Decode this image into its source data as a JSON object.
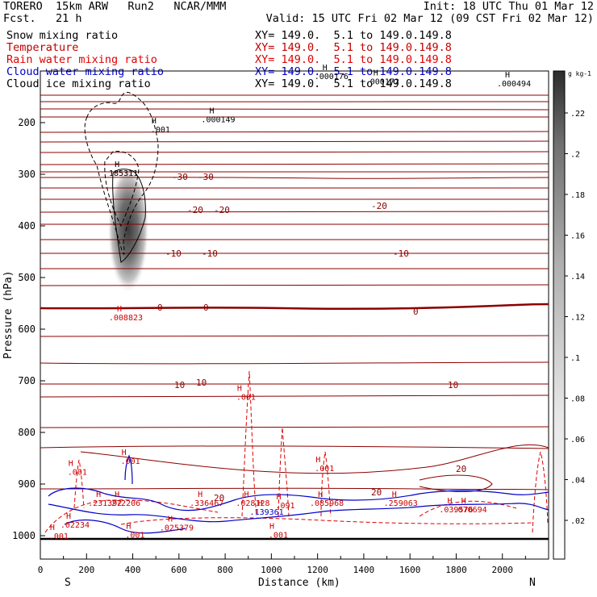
{
  "header": {
    "model": "TORERO  15km ARW   Run2   NCAR/MMM",
    "init": "Init: 18 UTC Thu 01 Mar 12",
    "fcst": "Fcst.   21 h",
    "valid": "Valid: 15 UTC Fri 02 Mar 12 (09 CST Fri 02 Mar 12)"
  },
  "legend": [
    {
      "label": "Snow mixing ratio",
      "color": "#000000",
      "xy": "XY= 149.0.  5.1 to 149.0.149.8"
    },
    {
      "label": "Temperature",
      "color": "#c00000",
      "xy": "XY= 149.0.  5.1 to 149.0.149.8"
    },
    {
      "label": "Rain water mixing ratio",
      "color": "#e00000",
      "xy": "XY= 149.0.  5.1 to 149.0.149.8"
    },
    {
      "label": "Cloud water mixing ratio",
      "color": "#0000cc",
      "xy": "XY= 149.0.  5.1 to 149.0.149.8"
    },
    {
      "label": "Cloud ice mixing ratio",
      "color": "#000000",
      "xy": "XY= 149.0.  5.1 to 149.0.149.8"
    }
  ],
  "chart_data": {
    "type": "cross-section contour",
    "ylabel": "Pressure (hPa)",
    "xlabel": "Distance (km)",
    "xlim": [
      0,
      2200
    ],
    "ylim": [
      1050,
      100
    ],
    "x_ticks": [
      0,
      200,
      400,
      600,
      800,
      1000,
      1200,
      1400,
      1600,
      1800,
      2000
    ],
    "y_ticks": [
      200,
      300,
      400,
      500,
      600,
      700,
      800,
      900,
      1000
    ],
    "end_left": "S",
    "end_right": "N",
    "temperature_isotherms": [
      {
        "label": "-30",
        "pressure": 300,
        "xs": [
          590,
          700
        ]
      },
      {
        "label": "-20",
        "pressure": 372,
        "xs": [
          660,
          770,
          1450
        ]
      },
      {
        "label": "-10",
        "pressure": 452,
        "xs": [
          560,
          700,
          1550
        ]
      },
      {
        "label": "0",
        "pressure": 563,
        "xs": [
          510,
          700,
          1630
        ]
      },
      {
        "label": "10",
        "pressure": 716,
        "xs": [
          600,
          700,
          1780
        ]
      },
      {
        "label": "20",
        "pressure": 905,
        "xs": [
          760,
          1410,
          1820
        ]
      }
    ],
    "extrema_labels": [
      {
        "text": ".000176",
        "x": 1260,
        "p": 116
      },
      {
        "text": ".000172",
        "x": 1480,
        "p": 126
      },
      {
        "text": ".000494",
        "x": 2050,
        "p": 130
      },
      {
        "text": ".000149",
        "x": 770,
        "p": 199
      },
      {
        "text": ".001",
        "x": 520,
        "p": 219
      },
      {
        "text": "185311",
        "x": 360,
        "p": 303
      },
      {
        "text": ".008823",
        "x": 370,
        "p": 583
      },
      {
        "text": ".001",
        "x": 890,
        "p": 737
      },
      {
        "text": ".001",
        "x": 1230,
        "p": 875
      },
      {
        "text": ".001",
        "x": 160,
        "p": 882
      },
      {
        "text": ".001",
        "x": 390,
        "p": 861
      },
      {
        "text": ".231392",
        "x": 280,
        "p": 942
      },
      {
        "text": ".272206",
        "x": 360,
        "p": 942
      },
      {
        "text": ".336467",
        "x": 720,
        "p": 942
      },
      {
        "text": ".028128",
        "x": 920,
        "p": 942
      },
      {
        "text": ".139361",
        "x": 980,
        "p": 959
      },
      {
        "text": ".091",
        "x": 1060,
        "p": 947
      },
      {
        "text": ".085968",
        "x": 1240,
        "p": 942
      },
      {
        "text": ".259063",
        "x": 1560,
        "p": 942
      },
      {
        "text": ".039576",
        "x": 1800,
        "p": 955
      },
      {
        "text": ".070694",
        "x": 1860,
        "p": 955
      },
      {
        "text": ".02234",
        "x": 150,
        "p": 984
      },
      {
        "text": ".025379",
        "x": 590,
        "p": 990
      },
      {
        "text": ".001",
        "x": 410,
        "p": 1004
      },
      {
        "text": ".001",
        "x": 1030,
        "p": 1004
      },
      {
        "text": ".001",
        "x": 80,
        "p": 1006
      }
    ]
  },
  "colorbar": {
    "unit": "g kg-1",
    "labels": [
      ".22",
      ".2",
      ".18",
      ".16",
      ".14",
      ".12",
      ".1",
      ".08",
      ".06",
      ".04",
      ".02"
    ]
  }
}
